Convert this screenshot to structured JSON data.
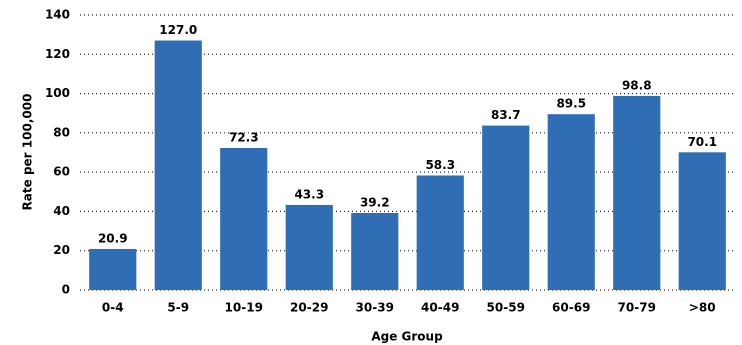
{
  "chart_data": {
    "type": "bar",
    "x_label": "Age Group",
    "y_label": "Rate per 100,000",
    "categories": [
      "0-4",
      "5-9",
      "10-19",
      "20-29",
      "30-39",
      "40-49",
      "50-59",
      "60-69",
      "70-79",
      ">80"
    ],
    "values": [
      20.9,
      127.0,
      72.3,
      43.3,
      39.2,
      58.3,
      83.7,
      89.5,
      98.8,
      70.1
    ],
    "value_labels": [
      "20.9",
      "127.0",
      "72.3",
      "43.3",
      "39.2",
      "58.3",
      "83.7",
      "89.5",
      "98.8",
      "70.1"
    ],
    "color": "#2f6eb5",
    "ylim": [
      0,
      140
    ],
    "yticks": [
      0,
      20,
      40,
      60,
      80,
      100,
      120,
      140
    ],
    "grid": true
  }
}
